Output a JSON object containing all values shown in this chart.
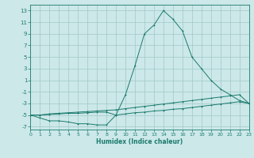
{
  "xlabel": "Humidex (Indice chaleur)",
  "x_values": [
    0,
    1,
    2,
    3,
    4,
    5,
    6,
    7,
    8,
    9,
    10,
    11,
    12,
    13,
    14,
    15,
    16,
    17,
    18,
    19,
    20,
    21,
    22,
    23
  ],
  "line1_y": [
    -5.0,
    -5.5,
    -6.0,
    -6.0,
    -6.2,
    -6.5,
    -6.5,
    -6.7,
    -6.7,
    -5.0,
    -1.5,
    3.5,
    9.0,
    10.5,
    13.0,
    11.5,
    9.5,
    5.0,
    3.0,
    1.0,
    -0.5,
    -1.5,
    -2.5,
    -3.0
  ],
  "line2_y": [
    -5.0,
    -5.0,
    -4.8,
    -4.7,
    -4.6,
    -4.5,
    -4.4,
    -4.3,
    -4.2,
    -4.1,
    -3.9,
    -3.7,
    -3.5,
    -3.3,
    -3.1,
    -2.9,
    -2.7,
    -2.5,
    -2.3,
    -2.1,
    -1.9,
    -1.7,
    -1.5,
    -3.0
  ],
  "line3_y": [
    -5.0,
    -5.0,
    -4.9,
    -4.8,
    -4.7,
    -4.7,
    -4.6,
    -4.5,
    -4.5,
    -5.0,
    -4.8,
    -4.6,
    -4.5,
    -4.3,
    -4.2,
    -4.0,
    -3.9,
    -3.7,
    -3.5,
    -3.3,
    -3.1,
    -2.9,
    -2.7,
    -3.0
  ],
  "line_color": "#1a7a6e",
  "bg_color": "#cce8e8",
  "grid_color": "#a0c8c8",
  "ylim": [
    -7.5,
    14.0
  ],
  "xlim": [
    0,
    23
  ],
  "yticks": [
    13,
    11,
    9,
    7,
    5,
    3,
    1,
    -1,
    -3,
    -5,
    -7
  ],
  "xticks": [
    0,
    1,
    2,
    3,
    4,
    5,
    6,
    7,
    8,
    9,
    10,
    11,
    12,
    13,
    14,
    15,
    16,
    17,
    18,
    19,
    20,
    21,
    22,
    23
  ]
}
